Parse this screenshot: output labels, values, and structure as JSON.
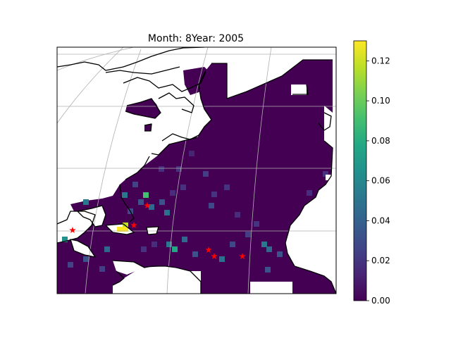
{
  "title": "Month: 8Year: 2005",
  "colorbar": {
    "colormap": "viridis",
    "range": [
      0.0,
      0.13
    ],
    "ticks": [
      "0.00",
      "0.02",
      "0.04",
      "0.06",
      "0.08",
      "0.10",
      "0.12"
    ],
    "tick_values": [
      0.0,
      0.02,
      0.04,
      0.06,
      0.08,
      0.1,
      0.12
    ]
  },
  "colors": {
    "ocean_low": "#440154",
    "grid": "#b0b0b0",
    "coastline": "#000000",
    "marker": "#ff0000"
  },
  "markers": {
    "shape": "star",
    "count": 6
  }
}
